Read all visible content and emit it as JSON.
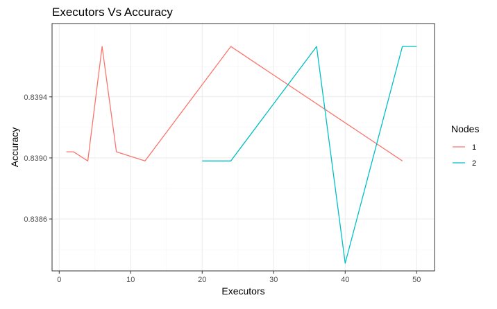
{
  "chart_data": {
    "type": "line",
    "title": "Executors Vs Accuracy",
    "xlabel": "Executors",
    "ylabel": "Accuracy",
    "xlim": [
      -1,
      52.5
    ],
    "ylim": [
      0.83826,
      0.83988
    ],
    "x_ticks": [
      0,
      10,
      20,
      30,
      40,
      50
    ],
    "x_tick_labels": [
      "0",
      "10",
      "20",
      "30",
      "40",
      "50"
    ],
    "y_ticks": [
      0.8386,
      0.839,
      0.8394
    ],
    "y_tick_labels": [
      "0.8386",
      "0.8390",
      "0.8394"
    ],
    "grid": true,
    "legend": {
      "title": "Nodes",
      "placement": "right"
    },
    "series": [
      {
        "name": "1",
        "color": "#F8766D",
        "x": [
          1,
          2,
          4,
          6,
          8,
          12,
          24,
          48
        ],
        "y": [
          0.83904,
          0.83904,
          0.83898,
          0.83973,
          0.83904,
          0.83898,
          0.83973,
          0.83898
        ]
      },
      {
        "name": "2",
        "color": "#00BFC4",
        "x": [
          20,
          24,
          36,
          40,
          48,
          50
        ],
        "y": [
          0.83898,
          0.83898,
          0.83973,
          0.83831,
          0.83973,
          0.83973
        ]
      }
    ]
  }
}
